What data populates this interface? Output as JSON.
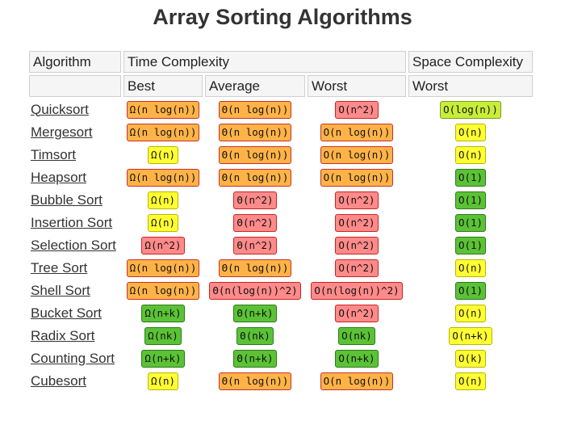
{
  "title": "Array Sorting Algorithms",
  "header": {
    "algorithm": "Algorithm",
    "time_complexity": "Time Complexity",
    "space_complexity": "Space Complexity",
    "best": "Best",
    "average": "Average",
    "worst": "Worst",
    "space_worst": "Worst"
  },
  "colors": {
    "good": "#5bc236",
    "fair": "#c8ee3a",
    "ok": "#ffff33",
    "mediocre": "#ffb347",
    "bad": "#ff8a8a"
  },
  "rows": [
    {
      "name": "Quicksort",
      "best": "Ω(n log(n))",
      "best_c": "o",
      "avg": "Θ(n log(n))",
      "avg_c": "o",
      "worst": "O(n^2)",
      "worst_c": "r",
      "space": "O(log(n))",
      "space_c": "lg"
    },
    {
      "name": "Mergesort",
      "best": "Ω(n log(n))",
      "best_c": "o",
      "avg": "Θ(n log(n))",
      "avg_c": "o",
      "worst": "O(n log(n))",
      "worst_c": "o",
      "space": "O(n)",
      "space_c": "y"
    },
    {
      "name": "Timsort",
      "best": "Ω(n)",
      "best_c": "y",
      "avg": "Θ(n log(n))",
      "avg_c": "o",
      "worst": "O(n log(n))",
      "worst_c": "o",
      "space": "O(n)",
      "space_c": "y"
    },
    {
      "name": "Heapsort",
      "best": "Ω(n log(n))",
      "best_c": "o",
      "avg": "Θ(n log(n))",
      "avg_c": "o",
      "worst": "O(n log(n))",
      "worst_c": "o",
      "space": "O(1)",
      "space_c": "g"
    },
    {
      "name": "Bubble Sort",
      "best": "Ω(n)",
      "best_c": "y",
      "avg": "Θ(n^2)",
      "avg_c": "r",
      "worst": "O(n^2)",
      "worst_c": "r",
      "space": "O(1)",
      "space_c": "g"
    },
    {
      "name": "Insertion Sort",
      "best": "Ω(n)",
      "best_c": "y",
      "avg": "Θ(n^2)",
      "avg_c": "r",
      "worst": "O(n^2)",
      "worst_c": "r",
      "space": "O(1)",
      "space_c": "g"
    },
    {
      "name": "Selection Sort",
      "best": "Ω(n^2)",
      "best_c": "r",
      "avg": "Θ(n^2)",
      "avg_c": "r",
      "worst": "O(n^2)",
      "worst_c": "r",
      "space": "O(1)",
      "space_c": "g"
    },
    {
      "name": "Tree Sort",
      "best": "Ω(n log(n))",
      "best_c": "o",
      "avg": "Θ(n log(n))",
      "avg_c": "o",
      "worst": "O(n^2)",
      "worst_c": "r",
      "space": "O(n)",
      "space_c": "y"
    },
    {
      "name": "Shell Sort",
      "best": "Ω(n log(n))",
      "best_c": "o",
      "avg": "Θ(n(log(n))^2)",
      "avg_c": "r",
      "worst": "O(n(log(n))^2)",
      "worst_c": "r",
      "space": "O(1)",
      "space_c": "g"
    },
    {
      "name": "Bucket Sort",
      "best": "Ω(n+k)",
      "best_c": "g",
      "avg": "Θ(n+k)",
      "avg_c": "g",
      "worst": "O(n^2)",
      "worst_c": "r",
      "space": "O(n)",
      "space_c": "y"
    },
    {
      "name": "Radix Sort",
      "best": "Ω(nk)",
      "best_c": "g",
      "avg": "Θ(nk)",
      "avg_c": "g",
      "worst": "O(nk)",
      "worst_c": "g",
      "space": "O(n+k)",
      "space_c": "y"
    },
    {
      "name": "Counting Sort",
      "best": "Ω(n+k)",
      "best_c": "g",
      "avg": "Θ(n+k)",
      "avg_c": "g",
      "worst": "O(n+k)",
      "worst_c": "g",
      "space": "O(k)",
      "space_c": "y"
    },
    {
      "name": "Cubesort",
      "best": "Ω(n)",
      "best_c": "y",
      "avg": "Θ(n log(n))",
      "avg_c": "o",
      "worst": "O(n log(n))",
      "worst_c": "o",
      "space": "O(n)",
      "space_c": "y"
    }
  ]
}
